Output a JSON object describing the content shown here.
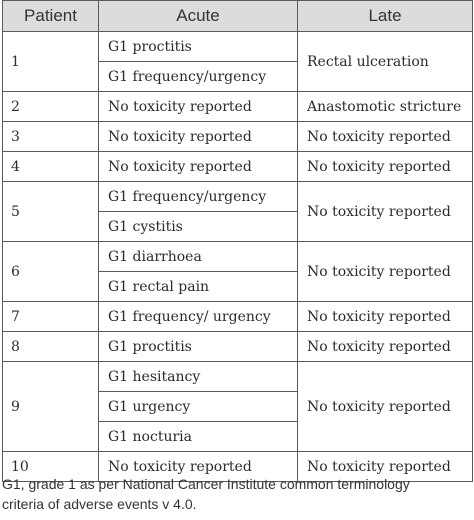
{
  "table": {
    "headers": [
      "Patient",
      "Acute",
      "Late"
    ],
    "rows": [
      {
        "patient": "1",
        "acute": [
          "G1 proctitis",
          "G1 frequency/urgency"
        ],
        "late": "Rectal ulceration"
      },
      {
        "patient": "2",
        "acute": [
          "No toxicity reported"
        ],
        "late": "Anastomotic stricture"
      },
      {
        "patient": "3",
        "acute": [
          "No toxicity reported"
        ],
        "late": "No toxicity reported"
      },
      {
        "patient": "4",
        "acute": [
          "No toxicity reported"
        ],
        "late": "No toxicity reported"
      },
      {
        "patient": "5",
        "acute": [
          "G1 frequency/urgency",
          "G1 cystitis"
        ],
        "late": "No toxicity reported"
      },
      {
        "patient": "6",
        "acute": [
          "G1 diarrhoea",
          "G1 rectal pain"
        ],
        "late": "No toxicity reported"
      },
      {
        "patient": "7",
        "acute": [
          "G1 frequency/ urgency"
        ],
        "late": "No toxicity reported"
      },
      {
        "patient": "8",
        "acute": [
          "G1 proctitis"
        ],
        "late": "No toxicity reported"
      },
      {
        "patient": "9",
        "acute": [
          "G1 hesitancy",
          "G1 urgency",
          "G1 nocturia"
        ],
        "late": "No toxicity reported"
      },
      {
        "patient": "10",
        "acute": [
          "No toxicity reported"
        ],
        "late": "No toxicity reported"
      }
    ]
  },
  "footnote": {
    "line1": "G1, grade 1 as per National Cancer Institute common terminology",
    "line2": "criteria of adverse events v 4.0."
  }
}
